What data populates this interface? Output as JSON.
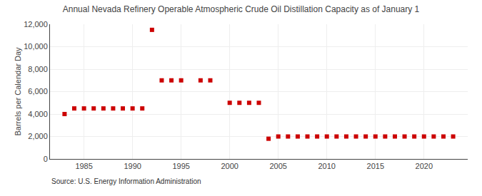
{
  "chart_data": {
    "type": "scatter",
    "title": "Annual Nevada Refinery Operable Atmospheric Crude Oil Distillation Capacity as of January 1",
    "ylabel": "Barrels per Calendar Day",
    "annotations": [
      "Source: U.S. Energy Information Administration"
    ],
    "x": [
      1983,
      1984,
      1985,
      1986,
      1987,
      1988,
      1989,
      1990,
      1991,
      1992,
      1993,
      1994,
      1995,
      1997,
      1998,
      2000,
      2001,
      2002,
      2003,
      2004,
      2005,
      2006,
      2007,
      2008,
      2009,
      2010,
      2011,
      2012,
      2013,
      2014,
      2015,
      2016,
      2017,
      2018,
      2019,
      2020,
      2021,
      2022,
      2023
    ],
    "values": [
      4000,
      4500,
      4500,
      4500,
      4500,
      4500,
      4500,
      4500,
      4500,
      11500,
      7000,
      7000,
      7000,
      7000,
      7000,
      5000,
      5000,
      5000,
      5000,
      1800,
      2000,
      2000,
      2000,
      2000,
      2000,
      2000,
      2000,
      2000,
      2000,
      2000,
      2000,
      2000,
      2000,
      2000,
      2000,
      2000,
      2000,
      2000,
      2000
    ],
    "color": "#cc0000",
    "marker": "square",
    "xlim": [
      1981.5,
      2024.5
    ],
    "xticks": [
      1985,
      1990,
      1995,
      2000,
      2005,
      2010,
      2015,
      2020
    ],
    "ylim": [
      0,
      12000
    ],
    "yticks": [
      0,
      {
        "value": 2000,
        "label": "2,000"
      },
      {
        "value": 4000,
        "label": "4,000"
      },
      {
        "value": 6000,
        "label": "6,000"
      },
      {
        "value": 8000,
        "label": "8,000"
      },
      {
        "value": 10000,
        "label": "10,000"
      },
      {
        "value": 12000,
        "label": "12,000"
      }
    ],
    "grid": true
  }
}
